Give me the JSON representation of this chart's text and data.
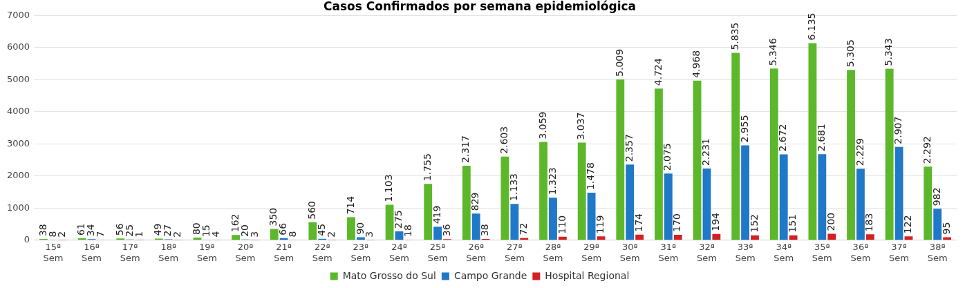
{
  "chart_data": {
    "type": "bar",
    "title": "Casos Confirmados por semana epidemiológica",
    "categories": [
      "15ª Sem",
      "16ª Sem",
      "17ª Sem",
      "18ª Sem",
      "19ª Sem",
      "20ª Sem",
      "21ª Sem",
      "22ª Sem",
      "23ª Sem",
      "24ª Sem",
      "25ª Sem",
      "26ª Sem",
      "27ª Sem",
      "28ª Sem",
      "29ª Sem",
      "30ª Sem",
      "31ª Sem",
      "32ª Sem",
      "33ª Sem",
      "34ª Sem",
      "35ª Sem",
      "36ª Sem",
      "37ª Sem",
      "38ª Sem"
    ],
    "series": [
      {
        "name": "Mato Grosso do Sul",
        "color": "#5cb82a",
        "values": [
          38,
          61,
          56,
          49,
          80,
          162,
          350,
          560,
          714,
          1103,
          1755,
          2317,
          2603,
          3059,
          3037,
          5009,
          4724,
          4968,
          5835,
          5346,
          6135,
          5305,
          5343,
          2292
        ],
        "value_labels": [
          "38",
          "61",
          "56",
          "49",
          "80",
          "162",
          "350",
          "560",
          "714",
          "1.103",
          "1.755",
          "2.317",
          "2.603",
          "3.059",
          "3.037",
          "5.009",
          "4.724",
          "4.968",
          "5.835",
          "5.346",
          "6.135",
          "5.305",
          "5.343",
          "2.292"
        ]
      },
      {
        "name": "Campo Grande",
        "color": "#1f78c8",
        "values": [
          8,
          34,
          25,
          27,
          15,
          20,
          66,
          45,
          90,
          275,
          419,
          829,
          1133,
          1323,
          1478,
          2357,
          2075,
          2231,
          2955,
          2672,
          2681,
          2229,
          2907,
          982
        ],
        "value_labels": [
          "8",
          "34",
          "25",
          "27",
          "15",
          "20",
          "66",
          "45",
          "90",
          "275",
          "419",
          "829",
          "1.133",
          "1.323",
          "1.478",
          "2.357",
          "2.075",
          "2.231",
          "2.955",
          "2.672",
          "2.681",
          "2.229",
          "2.907",
          "982"
        ]
      },
      {
        "name": "Hospital Regional",
        "color": "#d42020",
        "values": [
          2,
          7,
          1,
          2,
          4,
          3,
          8,
          2,
          3,
          18,
          36,
          38,
          72,
          110,
          119,
          174,
          170,
          194,
          152,
          151,
          200,
          183,
          122,
          95
        ],
        "value_labels": [
          "2",
          "7",
          "1",
          "2",
          "4",
          "3",
          "8",
          "2",
          "3",
          "18",
          "36",
          "38",
          "72",
          "110",
          "119",
          "174",
          "170",
          "194",
          "152",
          "151",
          "200",
          "183",
          "122",
          "95"
        ]
      }
    ],
    "ylim": [
      0,
      7000
    ],
    "yticks": [
      0,
      1000,
      2000,
      3000,
      4000,
      5000,
      6000,
      7000
    ],
    "grid": "y",
    "legend": "bottom"
  }
}
